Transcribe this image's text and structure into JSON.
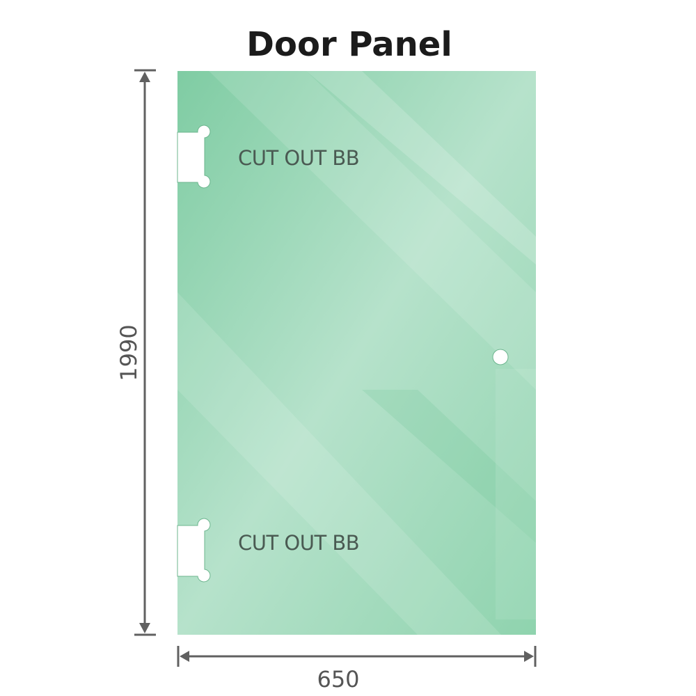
{
  "title": "Door Panel",
  "panel": {
    "cutout_top_label": "CUT OUT BB",
    "cutout_bottom_label": "CUT OUT BB",
    "glass_color": "#86cfa8"
  },
  "dimensions": {
    "height_label": "1990",
    "width_label": "650",
    "line_color": "#606060"
  }
}
